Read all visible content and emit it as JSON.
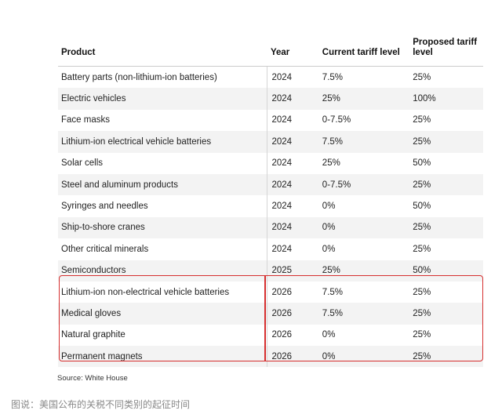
{
  "table": {
    "headers": {
      "product": "Product",
      "year": "Year",
      "current": "Current tariff level",
      "proposed": "Proposed tariff level"
    },
    "rows": [
      {
        "product": "Battery parts (non-lithium-ion batteries)",
        "year": "2024",
        "current": "7.5%",
        "proposed": "25%"
      },
      {
        "product": "Electric vehicles",
        "year": "2024",
        "current": "25%",
        "proposed": "100%"
      },
      {
        "product": "Face masks",
        "year": "2024",
        "current": "0-7.5%",
        "proposed": "25%"
      },
      {
        "product": "Lithium-ion electrical vehicle batteries",
        "year": "2024",
        "current": "7.5%",
        "proposed": "25%"
      },
      {
        "product": "Solar cells",
        "year": "2024",
        "current": "25%",
        "proposed": "50%"
      },
      {
        "product": "Steel and aluminum products",
        "year": "2024",
        "current": "0-7.5%",
        "proposed": "25%"
      },
      {
        "product": "Syringes and needles",
        "year": "2024",
        "current": "0%",
        "proposed": "50%"
      },
      {
        "product": "Ship-to-shore cranes",
        "year": "2024",
        "current": "0%",
        "proposed": "25%"
      },
      {
        "product": "Other critical minerals",
        "year": "2024",
        "current": "0%",
        "proposed": "25%"
      },
      {
        "product": "Semiconductors",
        "year": "2025",
        "current": "25%",
        "proposed": "50%"
      },
      {
        "product": "Lithium-ion non-electrical vehicle batteries",
        "year": "2026",
        "current": "7.5%",
        "proposed": "25%"
      },
      {
        "product": "Medical gloves",
        "year": "2026",
        "current": "7.5%",
        "proposed": "25%"
      },
      {
        "product": "Natural graphite",
        "year": "2026",
        "current": "0%",
        "proposed": "25%"
      },
      {
        "product": "Permanent magnets",
        "year": "2026",
        "current": "0%",
        "proposed": "25%"
      }
    ]
  },
  "source": "Source: White House",
  "caption": "图说：美国公布的关税不同类别的起征时间",
  "colors": {
    "highlight_border": "#d62f2f",
    "stripe": "#f3f3f3",
    "caption_text": "#888888"
  }
}
